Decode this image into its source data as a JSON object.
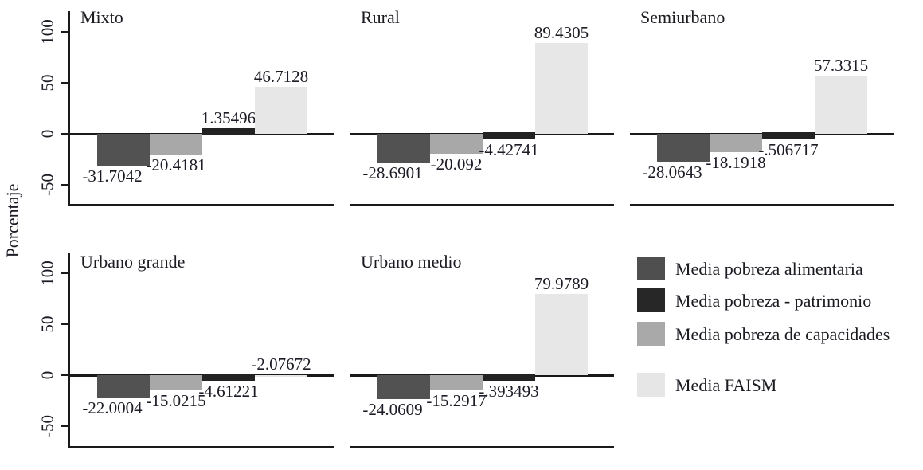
{
  "chart_data": {
    "type": "bar",
    "ylabel": "Porcentaje",
    "yticks": [
      100,
      50,
      0,
      -50
    ],
    "ylim": [
      -67,
      120
    ],
    "grid": false,
    "legend_position": "bottom-right-panel",
    "axis_color": "#1a1a1a",
    "text_color": "#1b1b22",
    "series_colors": {
      "alimentaria": "#525252",
      "patrimonio": "#222222",
      "capacidades": "#a8a8a8",
      "faism": "#e7e7e8"
    },
    "series_legend": [
      {
        "key": "alimentaria",
        "name": "Media pobreza alimentaria",
        "color": "#4f4f4f"
      },
      {
        "key": "patrimonio",
        "name": "Media pobreza - patrimonio",
        "color": "#272727"
      },
      {
        "key": "capacidades",
        "name": "Media pobreza de capacidades",
        "color": "#a9a9a9"
      },
      {
        "key": "faism",
        "name": "Media FAISM",
        "color": "#e6e6e7"
      }
    ],
    "bar_order": [
      "alimentaria",
      "capacidades",
      "patrimonio",
      "faism"
    ],
    "panels": [
      {
        "title": "Mixto",
        "bars": [
          {
            "series": "alimentaria",
            "value": -31.7042,
            "label": "-31.7042",
            "label_side": "below"
          },
          {
            "series": "capacidades",
            "value": -20.4181,
            "label": "-20.4181",
            "label_side": "below"
          },
          {
            "series": "patrimonio",
            "value": 1.35496,
            "label": "1.35496",
            "label_side": "above"
          },
          {
            "series": "faism",
            "value": 46.7128,
            "label": "46.7128",
            "label_side": "above"
          }
        ]
      },
      {
        "title": "Rural",
        "bars": [
          {
            "series": "alimentaria",
            "value": -28.6901,
            "label": "-28.6901",
            "label_side": "below"
          },
          {
            "series": "capacidades",
            "value": -20.092,
            "label": "-20.092",
            "label_side": "below"
          },
          {
            "series": "patrimonio",
            "value": -4.42741,
            "label": "-4.42741",
            "label_side": "below"
          },
          {
            "series": "faism",
            "value": 89.4305,
            "label": "89.4305",
            "label_side": "above"
          }
        ]
      },
      {
        "title": "Semiurbano",
        "bars": [
          {
            "series": "alimentaria",
            "value": -28.0643,
            "label": "-28.0643",
            "label_side": "below"
          },
          {
            "series": "capacidades",
            "value": -18.1918,
            "label": "-18.1918",
            "label_side": "below"
          },
          {
            "series": "patrimonio",
            "value": -0.506717,
            "label": "-.506717",
            "label_side": "below"
          },
          {
            "series": "faism",
            "value": 57.3315,
            "label": "57.3315",
            "label_side": "above"
          }
        ]
      },
      {
        "title": "Urbano grande",
        "bars": [
          {
            "series": "alimentaria",
            "value": -22.0004,
            "label": "-22.0004",
            "label_side": "below"
          },
          {
            "series": "capacidades",
            "value": -15.0215,
            "label": "-15.0215",
            "label_side": "below"
          },
          {
            "series": "patrimonio",
            "value": -4.61221,
            "label": "-4.61221",
            "label_side": "below"
          },
          {
            "series": "faism",
            "value": -2.07672,
            "label": "-2.07672",
            "label_side": "above"
          }
        ]
      },
      {
        "title": "Urbano medio",
        "bars": [
          {
            "series": "alimentaria",
            "value": -24.0609,
            "label": "-24.0609",
            "label_side": "below"
          },
          {
            "series": "capacidades",
            "value": -15.2917,
            "label": "-15.2917",
            "label_side": "below"
          },
          {
            "series": "patrimonio",
            "value": -0.393493,
            "label": "-.393493",
            "label_side": "below"
          },
          {
            "series": "faism",
            "value": 79.9789,
            "label": "79.9789",
            "label_side": "above"
          }
        ]
      }
    ]
  }
}
